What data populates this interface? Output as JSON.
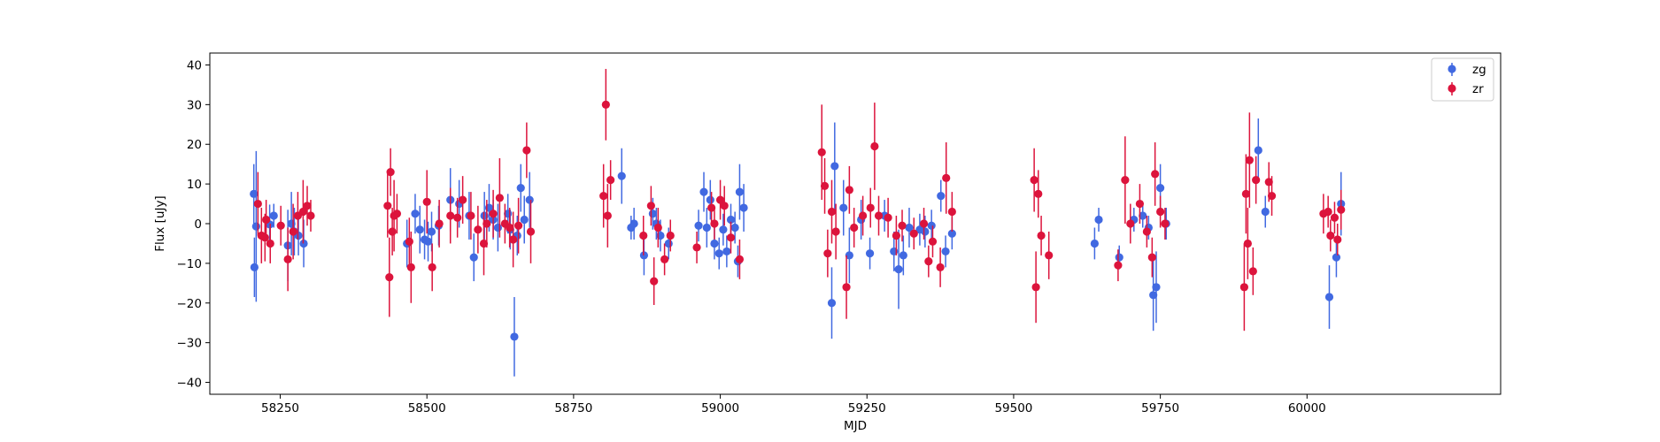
{
  "chart_data": {
    "type": "scatter",
    "title": "",
    "xlabel": "MJD",
    "ylabel": "Flux [uJy]",
    "xlim": [
      58130,
      60330
    ],
    "ylim": [
      -43,
      43
    ],
    "xticks": [
      58250,
      58500,
      58750,
      59000,
      59250,
      59500,
      59750,
      60000
    ],
    "yticks": [
      -40,
      -30,
      -20,
      -10,
      0,
      10,
      20,
      30,
      40
    ],
    "grid": false,
    "legend_position": "top-right",
    "series": [
      {
        "name": "zg",
        "color": "#4169e1",
        "points": [
          [
            58205,
            7.5,
            7.5
          ],
          [
            58206,
            -11,
            7.5
          ],
          [
            58209,
            -0.7,
            19
          ],
          [
            58232,
            -0.2,
            5
          ],
          [
            58239,
            2,
            3
          ],
          [
            58263,
            -5.5,
            9
          ],
          [
            58269,
            0,
            8
          ],
          [
            58274,
            -2,
            6
          ],
          [
            58281,
            -3,
            5
          ],
          [
            58290,
            -5,
            6
          ],
          [
            58466,
            -5,
            6
          ],
          [
            58480,
            2.5,
            5
          ],
          [
            58488,
            -1.5,
            6
          ],
          [
            58496,
            -4,
            5
          ],
          [
            58502,
            -4.5,
            5
          ],
          [
            58508,
            -2,
            5
          ],
          [
            58520,
            -0.5,
            5
          ],
          [
            58540,
            6,
            8
          ],
          [
            58555,
            5,
            6
          ],
          [
            58572,
            2,
            6
          ],
          [
            58580,
            -8.5,
            6
          ],
          [
            58598,
            2,
            6
          ],
          [
            58606,
            4,
            6
          ],
          [
            58613,
            1,
            5
          ],
          [
            58621,
            -1,
            6
          ],
          [
            58638,
            2.5,
            5
          ],
          [
            58642,
            -1.5,
            5
          ],
          [
            58649,
            -28.5,
            10
          ],
          [
            58654,
            -3,
            5
          ],
          [
            58660,
            9,
            6
          ],
          [
            58666,
            1,
            6
          ],
          [
            58675,
            6,
            7
          ],
          [
            58832,
            12,
            7
          ],
          [
            58848,
            -1,
            3
          ],
          [
            58853,
            0,
            4
          ],
          [
            58870,
            -8,
            5
          ],
          [
            58885,
            2.5,
            4
          ],
          [
            58891,
            0,
            4
          ],
          [
            58898,
            -3,
            4
          ],
          [
            58912,
            -5,
            4
          ],
          [
            58963,
            -0.5,
            4
          ],
          [
            58972,
            8,
            5
          ],
          [
            58977,
            -1,
            5
          ],
          [
            58983,
            6,
            5
          ],
          [
            58990,
            -5,
            4
          ],
          [
            58998,
            -7.5,
            4
          ],
          [
            59005,
            -1.5,
            4
          ],
          [
            59011,
            -7,
            4
          ],
          [
            59018,
            1,
            4
          ],
          [
            59025,
            -1,
            4
          ],
          [
            59030,
            -9.5,
            4
          ],
          [
            59033,
            8,
            7
          ],
          [
            59040,
            4,
            6
          ],
          [
            59190,
            -20,
            9
          ],
          [
            59195,
            14.5,
            11
          ],
          [
            59210,
            4,
            7
          ],
          [
            59220,
            -8,
            7
          ],
          [
            59240,
            1,
            5
          ],
          [
            59255,
            -7.5,
            4
          ],
          [
            59280,
            2,
            4
          ],
          [
            59296,
            -7,
            5
          ],
          [
            59304,
            -11.5,
            10
          ],
          [
            59312,
            -8,
            5
          ],
          [
            59322,
            -1,
            5
          ],
          [
            59340,
            -1.5,
            4
          ],
          [
            59349,
            -2,
            4
          ],
          [
            59360,
            -0.5,
            4
          ],
          [
            59376,
            7,
            4
          ],
          [
            59384,
            -7,
            4
          ],
          [
            59395,
            -2.5,
            4
          ],
          [
            59638,
            -5,
            4
          ],
          [
            59645,
            1,
            3
          ],
          [
            59680,
            -8.5,
            3
          ],
          [
            59705,
            1,
            3
          ],
          [
            59720,
            2,
            3
          ],
          [
            59730,
            -1,
            3
          ],
          [
            59738,
            -18,
            9
          ],
          [
            59743,
            -16,
            9
          ],
          [
            59750,
            9,
            6
          ],
          [
            59760,
            0,
            4
          ],
          [
            59917,
            18.5,
            8
          ],
          [
            59929,
            3,
            4
          ],
          [
            60038,
            -18.5,
            8
          ],
          [
            60050,
            -8.5,
            5
          ],
          [
            60058,
            5,
            8
          ]
        ]
      },
      {
        "name": "zr",
        "color": "#dc143c",
        "points": [
          [
            58212,
            5,
            8
          ],
          [
            58218,
            -3,
            7
          ],
          [
            58224,
            -3.5,
            6
          ],
          [
            58226,
            1,
            5
          ],
          [
            58233,
            -5,
            5
          ],
          [
            58251,
            -0.5,
            5
          ],
          [
            58263,
            -9,
            8
          ],
          [
            58272,
            -2,
            7
          ],
          [
            58280,
            2,
            6
          ],
          [
            58289,
            3,
            8
          ],
          [
            58296,
            4.5,
            5
          ],
          [
            58302,
            2,
            4
          ],
          [
            58433,
            4.5,
            8
          ],
          [
            58436,
            -13.5,
            10
          ],
          [
            58438,
            13,
            6
          ],
          [
            58441,
            -2,
            6
          ],
          [
            58444,
            2,
            9
          ],
          [
            58449,
            2.5,
            5
          ],
          [
            58470,
            -4.5,
            6
          ],
          [
            58473,
            -11,
            9
          ],
          [
            58500,
            5.5,
            8
          ],
          [
            58509,
            -11,
            6
          ],
          [
            58521,
            0,
            6
          ],
          [
            58540,
            2,
            7
          ],
          [
            58552,
            1.5,
            5
          ],
          [
            58561,
            6,
            6
          ],
          [
            58575,
            2,
            6
          ],
          [
            58587,
            -1.5,
            6
          ],
          [
            58597,
            -5,
            8
          ],
          [
            58602,
            0,
            6
          ],
          [
            58613,
            2.5,
            6
          ],
          [
            58624,
            6.5,
            10
          ],
          [
            58633,
            0,
            5
          ],
          [
            58641,
            -1,
            5
          ],
          [
            58647,
            -4,
            7
          ],
          [
            58656,
            -0.5,
            7
          ],
          [
            58670,
            18.5,
            7
          ],
          [
            58677,
            -2,
            8
          ],
          [
            58801,
            7,
            8
          ],
          [
            58805,
            30,
            9
          ],
          [
            58808,
            2,
            8
          ],
          [
            58813,
            11,
            5
          ],
          [
            58869,
            -3,
            5
          ],
          [
            58882,
            4.5,
            5
          ],
          [
            58887,
            -14.5,
            6
          ],
          [
            58894,
            -1,
            5
          ],
          [
            58905,
            -9,
            4
          ],
          [
            58915,
            -3,
            4
          ],
          [
            58960,
            -6,
            4
          ],
          [
            58985,
            4,
            4
          ],
          [
            58990,
            0,
            4
          ],
          [
            59000,
            6,
            5
          ],
          [
            59007,
            4.5,
            5
          ],
          [
            59018,
            -3.5,
            4
          ],
          [
            59033,
            -9,
            5
          ],
          [
            59173,
            18,
            12
          ],
          [
            59178,
            9.5,
            7
          ],
          [
            59183,
            -7.5,
            6
          ],
          [
            59190,
            3,
            8
          ],
          [
            59197,
            -2,
            7
          ],
          [
            59215,
            -16,
            8
          ],
          [
            59220,
            8.5,
            6
          ],
          [
            59228,
            -1,
            5
          ],
          [
            59243,
            2,
            5
          ],
          [
            59256,
            4,
            5
          ],
          [
            59263,
            19.5,
            11
          ],
          [
            59270,
            2,
            5
          ],
          [
            59286,
            1.5,
            5
          ],
          [
            59300,
            -3,
            5
          ],
          [
            59310,
            -0.5,
            4
          ],
          [
            59330,
            -2.5,
            4
          ],
          [
            59347,
            0,
            4
          ],
          [
            59355,
            -9.5,
            4
          ],
          [
            59362,
            -4.5,
            4
          ],
          [
            59375,
            -11,
            5
          ],
          [
            59385,
            11.5,
            9
          ],
          [
            59395,
            3,
            5
          ],
          [
            59535,
            11,
            8
          ],
          [
            59538,
            -16,
            9
          ],
          [
            59542,
            7.5,
            6
          ],
          [
            59547,
            -3,
            5
          ],
          [
            59560,
            -8,
            6
          ],
          [
            59678,
            -10.5,
            4
          ],
          [
            59690,
            11,
            11
          ],
          [
            59699,
            0,
            5
          ],
          [
            59715,
            5,
            5
          ],
          [
            59727,
            -2,
            4
          ],
          [
            59736,
            -8.5,
            5
          ],
          [
            59741,
            12.5,
            8
          ],
          [
            59750,
            3,
            4
          ],
          [
            59758,
            0,
            4
          ],
          [
            59893,
            -16,
            11
          ],
          [
            59896,
            7.5,
            10
          ],
          [
            59899,
            -5,
            9
          ],
          [
            59902,
            16,
            12
          ],
          [
            59908,
            -12,
            6
          ],
          [
            59913,
            11,
            6
          ],
          [
            59935,
            10.5,
            5
          ],
          [
            59940,
            7,
            5
          ],
          [
            60028,
            2.5,
            5
          ],
          [
            60036,
            3,
            4
          ],
          [
            60040,
            -3,
            4
          ],
          [
            60047,
            1.5,
            4
          ],
          [
            60052,
            -4,
            4
          ],
          [
            60058,
            3.5,
            5
          ]
        ]
      }
    ]
  }
}
